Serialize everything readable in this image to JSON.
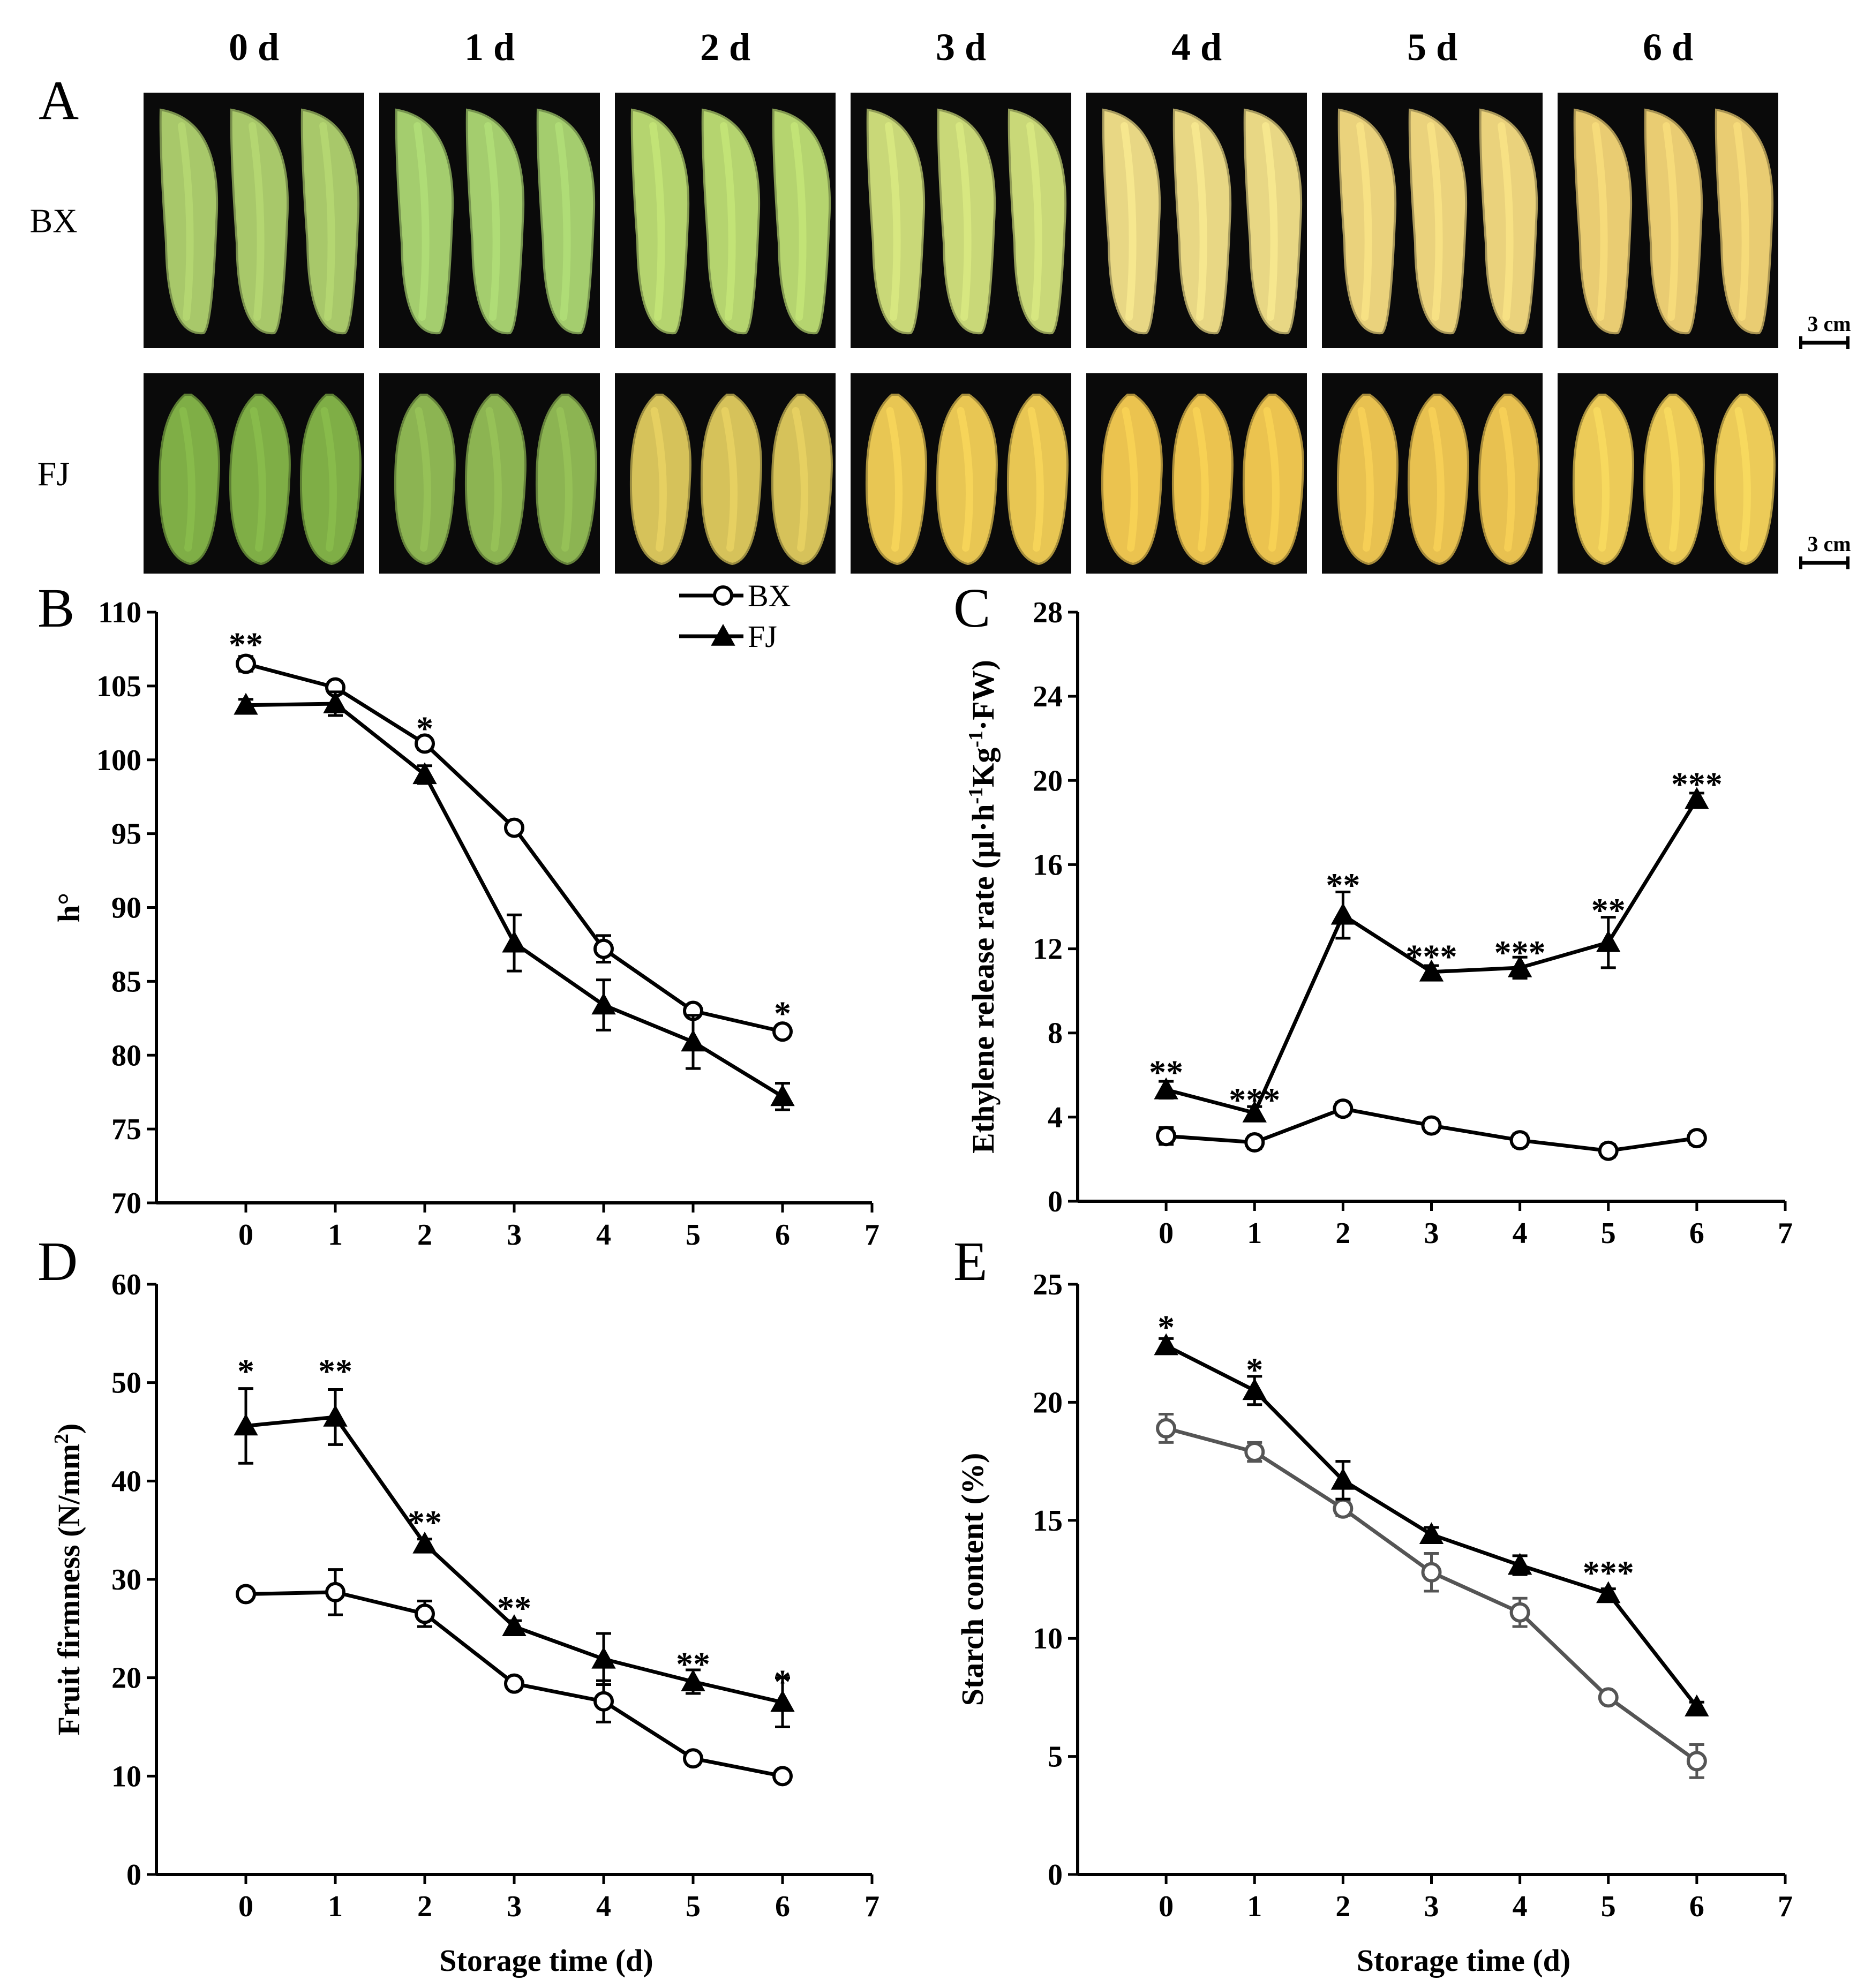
{
  "photos": {
    "panel_label": "A",
    "day_labels": [
      "0 d",
      "1 d",
      "2 d",
      "3 d",
      "4 d",
      "5 d",
      "6 d"
    ],
    "rows": [
      {
        "label": "BX",
        "scale_bar": "3 cm",
        "colors": [
          "#a8c86a",
          "#a4cd6e",
          "#b5d46f",
          "#c9d878",
          "#e8d784",
          "#ead27c",
          "#e9cc72"
        ]
      },
      {
        "label": "FJ",
        "scale_bar": "3 cm",
        "colors": [
          "#7fae46",
          "#8cb452",
          "#d6c25a",
          "#e8c653",
          "#ebc34f",
          "#e8c150",
          "#eccb58"
        ]
      }
    ]
  },
  "legend": {
    "series": [
      "BX",
      "FJ"
    ]
  },
  "chart_data": [
    {
      "panel": "B",
      "type": "line",
      "xlabel": "",
      "ylabel": "h°",
      "x": [
        0,
        1,
        2,
        3,
        4,
        5,
        6
      ],
      "xticks": [
        "0",
        "1",
        "2",
        "3",
        "4",
        "5",
        "6",
        "7"
      ],
      "xlim": [
        -1,
        7
      ],
      "ylim": [
        70,
        110
      ],
      "yticks": [
        "70",
        "75",
        "80",
        "85",
        "90",
        "95",
        "100",
        "105",
        "110"
      ],
      "series": [
        {
          "name": "BX",
          "marker": "open-circle",
          "color": "#000000",
          "values": [
            106.5,
            104.9,
            101.1,
            95.4,
            87.2,
            83.0,
            81.6
          ],
          "errors": [
            0.5,
            0.4,
            0.4,
            0.4,
            0.9,
            0.4,
            0.4
          ]
        },
        {
          "name": "FJ",
          "marker": "filled-triangle",
          "color": "#000000",
          "values": [
            103.7,
            103.8,
            99.0,
            87.6,
            83.4,
            80.9,
            77.2
          ],
          "errors": [
            0.4,
            0.8,
            0.6,
            1.9,
            1.7,
            1.8,
            0.9
          ]
        }
      ],
      "annotations": [
        {
          "x": 0,
          "y": 108.5,
          "text": "**"
        },
        {
          "x": 2,
          "y": 102.8,
          "text": "*"
        },
        {
          "x": 6,
          "y": 83.5,
          "text": "*"
        }
      ]
    },
    {
      "panel": "C",
      "type": "line",
      "xlabel": "",
      "ylabel": "Ethylene release rate (µl·h-1Kg-1·FW)",
      "ylabel_parts": [
        "Ethylene release rate (µl·h",
        "-1",
        "Kg",
        "-1",
        "·FW)"
      ],
      "x": [
        0,
        1,
        2,
        3,
        4,
        5,
        6
      ],
      "xticks": [
        "0",
        "1",
        "2",
        "3",
        "4",
        "5",
        "6",
        "7"
      ],
      "xlim": [
        -1,
        7
      ],
      "ylim": [
        0,
        28
      ],
      "yticks": [
        "0",
        "4",
        "8",
        "12",
        "16",
        "20",
        "24",
        "28"
      ],
      "series": [
        {
          "name": "BX",
          "marker": "open-circle",
          "color": "#000000",
          "values": [
            3.1,
            2.8,
            4.4,
            3.6,
            2.9,
            2.4,
            3.0
          ],
          "errors": [
            0.4,
            0.3,
            0.3,
            0.3,
            0.3,
            0.3,
            0.3
          ]
        },
        {
          "name": "FJ",
          "marker": "filled-triangle",
          "color": "#000000",
          "values": [
            5.3,
            4.2,
            13.6,
            10.9,
            11.1,
            12.3,
            19.1
          ],
          "errors": [
            0.4,
            0.3,
            1.1,
            0.3,
            0.5,
            1.2,
            0.3
          ]
        }
      ],
      "annotations": [
        {
          "x": 0,
          "y": 6.6,
          "text": "**"
        },
        {
          "x": 1,
          "y": 5.3,
          "text": "***"
        },
        {
          "x": 2,
          "y": 15.5,
          "text": "**"
        },
        {
          "x": 3,
          "y": 12.1,
          "text": "***"
        },
        {
          "x": 4,
          "y": 12.3,
          "text": "***"
        },
        {
          "x": 5,
          "y": 14.3,
          "text": "**"
        },
        {
          "x": 6,
          "y": 20.3,
          "text": "***"
        }
      ]
    },
    {
      "panel": "D",
      "type": "line",
      "xlabel": "Storage time (d)",
      "ylabel": "Fruit firmness (N/mm2)",
      "ylabel_parts": [
        "Fruit firmness (N/mm",
        "2",
        ")"
      ],
      "x": [
        0,
        1,
        2,
        3,
        4,
        5,
        6
      ],
      "xticks": [
        "0",
        "1",
        "2",
        "3",
        "4",
        "5",
        "6",
        "7"
      ],
      "xlim": [
        -1,
        7
      ],
      "ylim": [
        0,
        60
      ],
      "yticks": [
        "0",
        "10",
        "20",
        "30",
        "40",
        "50",
        "60"
      ],
      "series": [
        {
          "name": "BX",
          "marker": "open-circle",
          "color": "#000000",
          "values": [
            28.5,
            28.7,
            26.5,
            19.4,
            17.6,
            11.8,
            10.0
          ],
          "errors": [
            0.6,
            2.3,
            1.3,
            0.6,
            2.1,
            0.6,
            0.5
          ]
        },
        {
          "name": "FJ",
          "marker": "filled-triangle",
          "color": "#000000",
          "values": [
            45.6,
            46.5,
            33.6,
            25.2,
            21.9,
            19.6,
            17.5
          ],
          "errors": [
            3.8,
            2.8,
            0.5,
            0.6,
            2.6,
            1.2,
            2.5
          ]
        }
      ],
      "annotations": [
        {
          "x": 0,
          "y": 52.2,
          "text": "*"
        },
        {
          "x": 1,
          "y": 52.2,
          "text": "**"
        },
        {
          "x": 2,
          "y": 36.8,
          "text": "**"
        },
        {
          "x": 3,
          "y": 28.1,
          "text": "**"
        },
        {
          "x": 5,
          "y": 22.4,
          "text": "**"
        },
        {
          "x": 6,
          "y": 20.6,
          "text": "*"
        }
      ]
    },
    {
      "panel": "E",
      "type": "line",
      "xlabel": "Storage time (d)",
      "ylabel": "Starch content (%)",
      "x": [
        0,
        1,
        2,
        3,
        4,
        5,
        6
      ],
      "xticks": [
        "0",
        "1",
        "2",
        "3",
        "4",
        "5",
        "6",
        "7"
      ],
      "xlim": [
        -1,
        7
      ],
      "ylim": [
        0,
        25
      ],
      "yticks": [
        "0",
        "5",
        "10",
        "15",
        "20",
        "25"
      ],
      "series": [
        {
          "name": "BX",
          "marker": "open-circle",
          "color": "#555555",
          "values": [
            18.9,
            17.9,
            15.5,
            12.8,
            11.1,
            7.5,
            4.8
          ],
          "errors": [
            0.6,
            0.4,
            0.3,
            0.8,
            0.6,
            0.2,
            0.7
          ]
        },
        {
          "name": "FJ",
          "marker": "filled-triangle",
          "color": "#000000",
          "values": [
            22.4,
            20.5,
            16.7,
            14.4,
            13.1,
            11.9,
            7.1
          ],
          "errors": [
            0.3,
            0.6,
            0.8,
            0.3,
            0.4,
            0.2,
            0.2
          ]
        }
      ],
      "annotations": [
        {
          "x": 0,
          "y": 23.6,
          "text": "*"
        },
        {
          "x": 1,
          "y": 21.8,
          "text": "*"
        },
        {
          "x": 5,
          "y": 13.2,
          "text": "***"
        }
      ]
    }
  ]
}
